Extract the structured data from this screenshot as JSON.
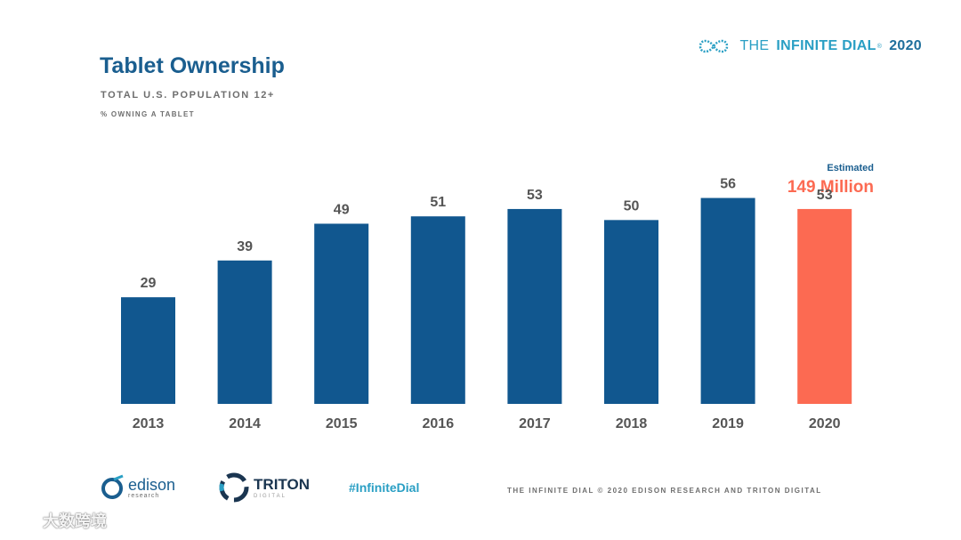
{
  "brand": {
    "prefix": "THE",
    "name": "INFINITE DIAL",
    "mark": "®",
    "year": "2020"
  },
  "header": {
    "title": "Tablet Ownership",
    "subtitle": "TOTAL U.S. POPULATION 12+",
    "subsubtitle": "% OWNING A TABLET"
  },
  "chart_data": {
    "type": "bar",
    "title": "Tablet Ownership",
    "ylabel": "% owning a tablet",
    "categories": [
      "2013",
      "2014",
      "2015",
      "2016",
      "2017",
      "2018",
      "2019",
      "2020"
    ],
    "values": [
      29,
      39,
      49,
      51,
      53,
      50,
      56,
      53
    ],
    "ylim": [
      0,
      60
    ],
    "highlight_index": 7,
    "colors": {
      "bar": "#11578f",
      "highlight": "#fc6a52",
      "label": "#555555"
    },
    "annotation": {
      "label": "Estimated",
      "value": "149 Million"
    }
  },
  "footer": {
    "edison": "edison",
    "edison_sub": "research",
    "triton": "TRITON",
    "triton_sub": "DIGITAL",
    "hashtag": "#InfiniteDial",
    "copyright": "THE INFINITE DIAL   © 2020 EDISON RESEARCH AND TRITON DIGITAL"
  },
  "watermark": {
    "text": "大数跨境"
  }
}
